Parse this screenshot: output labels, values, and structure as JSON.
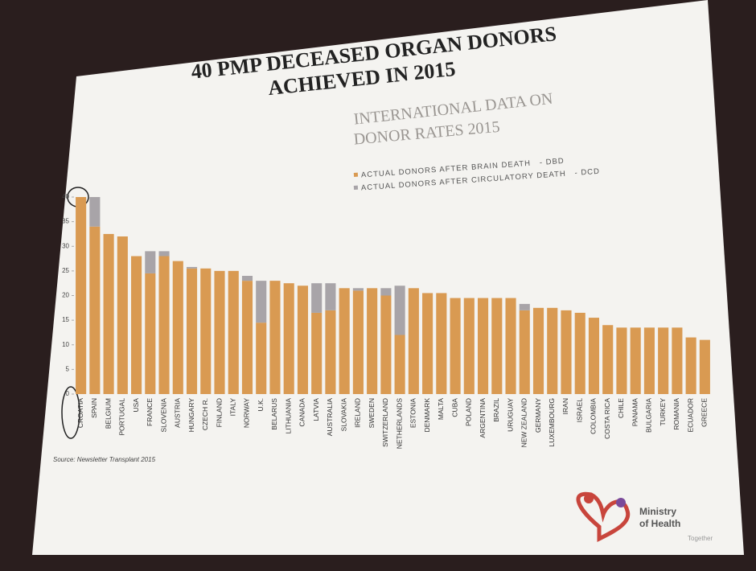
{
  "chart_data": {
    "type": "stacked_bar",
    "title_lines": [
      "40 PMP DECEASED ORGAN DONORS",
      "ACHIEVED IN 2015"
    ],
    "subtitle_lines": [
      "INTERNATIONAL DATA ON",
      "DONOR RATES 2015"
    ],
    "categories": [
      "CROATIA",
      "SPAIN",
      "BELGIUM",
      "PORTUGAL",
      "USA",
      "FRANCE",
      "SLOVENIA",
      "AUSTRIA",
      "HUNGARY",
      "CZECH R.",
      "FINLAND",
      "ITALY",
      "NORWAY",
      "U.K.",
      "BELARUS",
      "LITHUANIA",
      "CANADA",
      "LATVIA",
      "AUSTRALIA",
      "SLOVAKIA",
      "IRELAND",
      "SWEDEN",
      "SWITZERLAND",
      "NETHERLANDS",
      "ESTONIA",
      "DENMARK",
      "MALTA",
      "CUBA",
      "POLAND",
      "ARGENTINA",
      "BRAZIL",
      "URUGUAY",
      "NEW ZEALAND",
      "GERMANY",
      "LUXEMBOURG",
      "IRAN",
      "ISRAEL",
      "COLOMBIA",
      "COSTA RICA",
      "CHILE",
      "PANAMA",
      "BULGARIA",
      "TURKEY",
      "ROMANIA",
      "ECUADOR",
      "GREECE"
    ],
    "series": [
      {
        "name": "ACTUAL DONORS AFTER BRAIN DEATH   - DBD",
        "color": "#d99a52",
        "values": [
          40,
          34,
          32.5,
          32,
          28,
          24.5,
          28,
          27,
          25.5,
          25.5,
          25,
          25,
          23,
          14.5,
          23,
          22.5,
          22,
          16.5,
          17,
          21.5,
          21,
          21.5,
          20,
          12,
          21.5,
          20.5,
          20.5,
          19.5,
          19.5,
          19.5,
          19.5,
          19.5,
          17,
          17.5,
          17.5,
          17,
          16.5,
          15.5,
          14,
          13.5,
          13.5,
          13.5,
          13.5,
          13.5,
          11.5,
          11
        ]
      },
      {
        "name": "ACTUAL DONORS AFTER CIRCULATORY DEATH   - DCD",
        "color": "#a8a4a8",
        "values": [
          0,
          6,
          0,
          0,
          0,
          4.5,
          1,
          0,
          0.3,
          0,
          0,
          0,
          1,
          8.5,
          0,
          0,
          0,
          6,
          5.5,
          0,
          0.5,
          0,
          1.5,
          10,
          0,
          0,
          0,
          0,
          0,
          0,
          0,
          0,
          1.3,
          0,
          0,
          0,
          0,
          0,
          0,
          0,
          0,
          0,
          0,
          0,
          0,
          0
        ]
      }
    ],
    "ylim": [
      0,
      40
    ],
    "yticks": [
      0,
      5,
      10,
      15,
      20,
      25,
      30,
      35,
      40
    ],
    "source": "Source: Newsletter Transplant 2015",
    "logo": [
      "Ministry",
      "of Health",
      "Together"
    ]
  }
}
